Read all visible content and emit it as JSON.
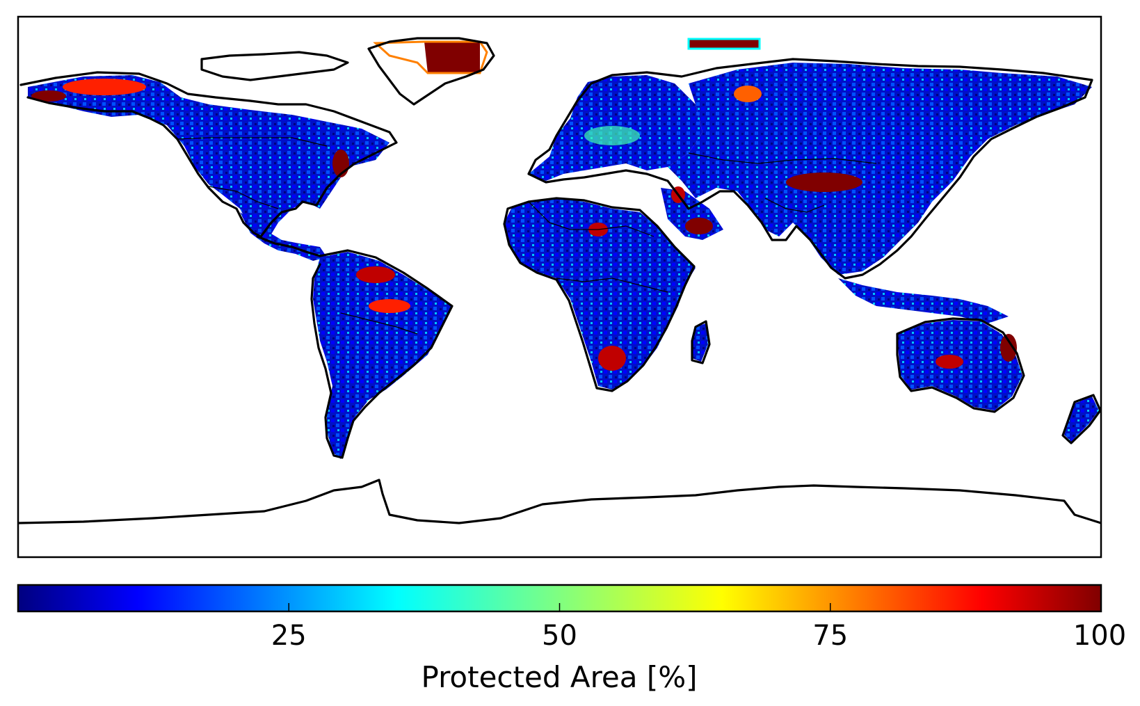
{
  "map": {
    "projection": "plate-carree",
    "extent": {
      "lon": [
        -180,
        180
      ],
      "lat": [
        -90,
        90
      ]
    },
    "background": "#ffffff",
    "coastline_color": "#000000"
  },
  "colorbar": {
    "label": "Protected Area [%]",
    "min": 0,
    "max": 100,
    "colormap": "jet",
    "orientation": "horizontal",
    "ticks": [
      25,
      50,
      75,
      100
    ],
    "tick_labels": [
      "25",
      "50",
      "75",
      "100"
    ],
    "stops": [
      "#000080",
      "#0000ff",
      "#0080ff",
      "#00ffff",
      "#80ff80",
      "#ffff00",
      "#ff8000",
      "#ff0000",
      "#800000"
    ]
  }
}
